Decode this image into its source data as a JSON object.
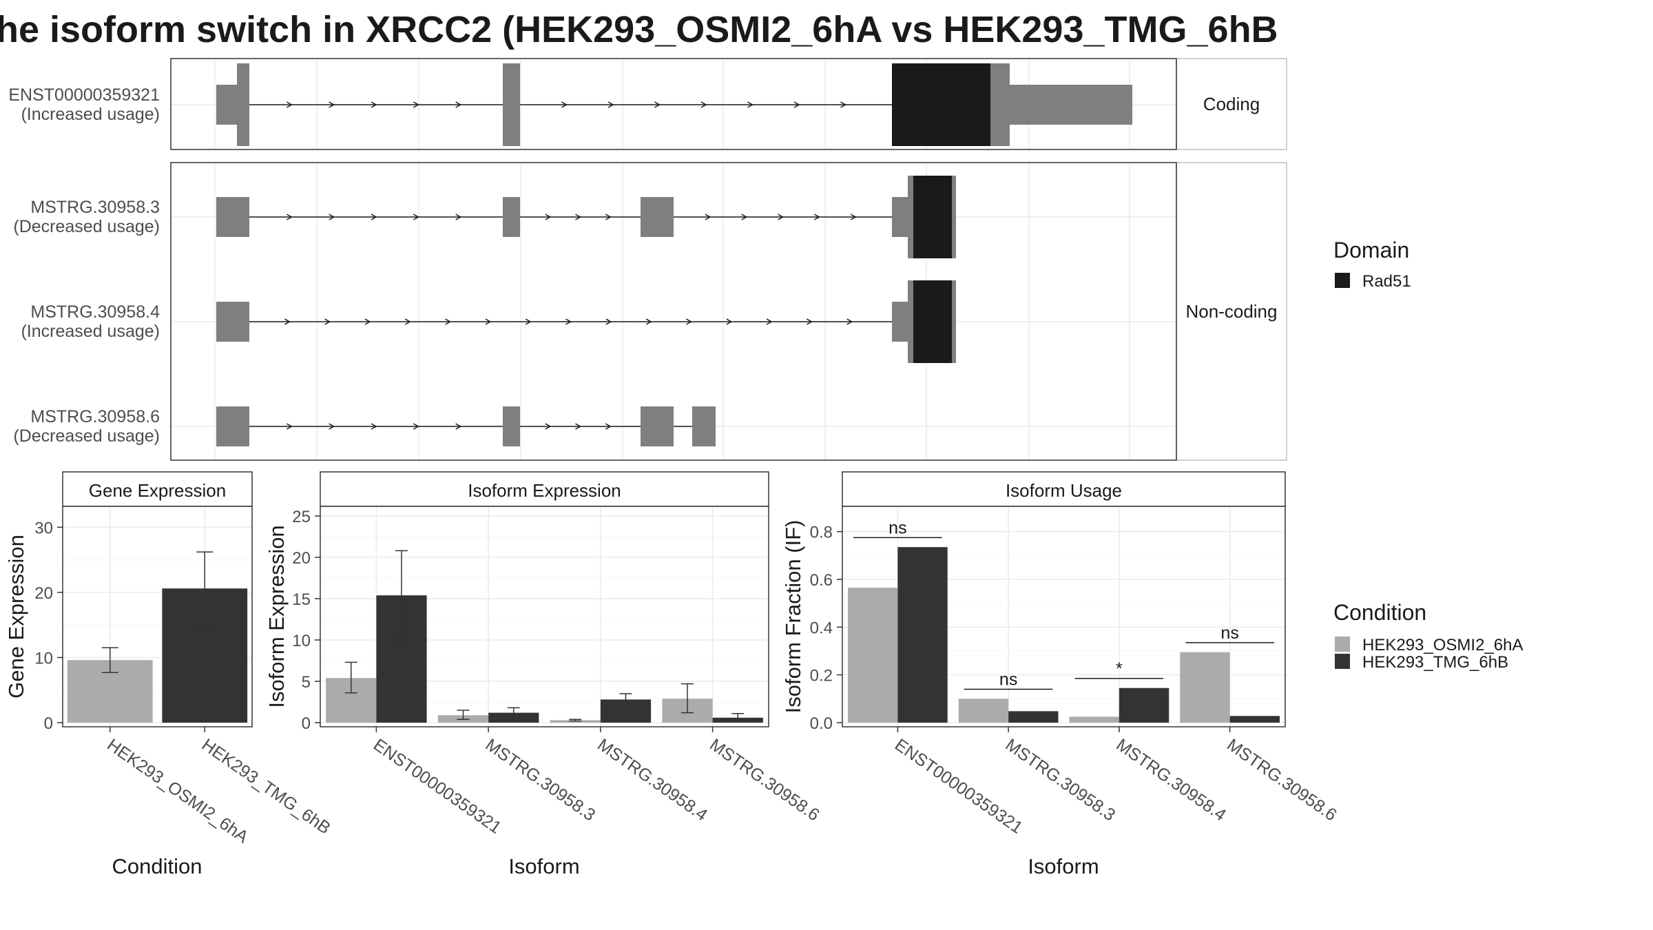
{
  "title": "he isoform switch in XRCC2 (HEK293_OSMI2_6hA vs HEK293_TMG_6hB",
  "colors": {
    "exon": "#7f7f7f",
    "domain": "#1a1a1a",
    "condition_a": "#ababab",
    "condition_b": "#333333",
    "grid": "#ebebeb",
    "panel_border": "#333333",
    "strip_border": "#bfbfbf"
  },
  "structure": {
    "facets": [
      {
        "label": "Coding",
        "rows": 1
      },
      {
        "label": "Non-coding",
        "rows": 3
      }
    ],
    "transcripts": [
      {
        "id": "ENST00000359321",
        "usage": "(Increased usage)",
        "facet": "Coding"
      },
      {
        "id": "MSTRG.30958.3",
        "usage": "(Decreased usage)",
        "facet": "Non-coding"
      },
      {
        "id": "MSTRG.30958.4",
        "usage": "(Increased usage)",
        "facet": "Non-coding"
      },
      {
        "id": "MSTRG.30958.6",
        "usage": "(Decreased usage)",
        "facet": "Non-coding"
      }
    ],
    "domain_legend_title": "Domain",
    "domain_legend_items": [
      {
        "label": "Rad51"
      }
    ]
  },
  "chart_data": [
    {
      "type": "bar",
      "title": "Gene Expression",
      "xlabel": "Condition",
      "ylabel": "Gene Expression",
      "ylim": [
        0,
        33
      ],
      "yticks": [
        0,
        10,
        20,
        30
      ],
      "categories": [
        "HEK293_OSMI2_6hA",
        "HEK293_TMG_6hB"
      ],
      "series": [
        {
          "values": [
            9.6,
            20.6
          ],
          "err_low": [
            7.7,
            15.0
          ],
          "err_high": [
            11.5,
            26.2
          ]
        }
      ]
    },
    {
      "type": "bar",
      "title": "Isoform Expression",
      "xlabel": "Isoform",
      "ylabel": "Isoform Expression",
      "ylim": [
        0,
        26
      ],
      "yticks": [
        0,
        5,
        10,
        15,
        20,
        25
      ],
      "categories": [
        "ENST00000359321",
        "MSTRG.30958.3",
        "MSTRG.30958.4",
        "MSTRG.30958.6"
      ],
      "series": [
        {
          "name": "HEK293_OSMI2_6hA",
          "values": [
            5.4,
            0.9,
            0.3,
            2.9
          ],
          "err_low": [
            3.6,
            0.4,
            0.2,
            1.2
          ],
          "err_high": [
            7.3,
            1.5,
            0.4,
            4.7
          ]
        },
        {
          "name": "HEK293_TMG_6hB",
          "values": [
            15.4,
            1.2,
            2.8,
            0.6
          ],
          "err_low": [
            10.0,
            0.6,
            2.1,
            0.2
          ],
          "err_high": [
            20.8,
            1.8,
            3.5,
            1.1
          ]
        }
      ]
    },
    {
      "type": "bar",
      "title": "Isoform Usage",
      "xlabel": "Isoform",
      "ylabel": "Isoform Fraction (IF)",
      "ylim": [
        0,
        0.9
      ],
      "yticks": [
        0.0,
        0.2,
        0.4,
        0.6,
        0.8
      ],
      "ytick_labels": [
        "0.0",
        "0.2",
        "0.4",
        "0.6",
        "0.8"
      ],
      "categories": [
        "ENST00000359321",
        "MSTRG.30958.3",
        "MSTRG.30958.4",
        "MSTRG.30958.6"
      ],
      "series": [
        {
          "name": "HEK293_OSMI2_6hA",
          "values": [
            0.565,
            0.1,
            0.025,
            0.295
          ]
        },
        {
          "name": "HEK293_TMG_6hB",
          "values": [
            0.735,
            0.048,
            0.145,
            0.028
          ]
        }
      ],
      "significance": [
        {
          "label": "ns",
          "y": 0.775
        },
        {
          "label": "ns",
          "y": 0.14
        },
        {
          "label": "*",
          "y": 0.185
        },
        {
          "label": "ns",
          "y": 0.335
        }
      ]
    }
  ],
  "condition_legend_title": "Condition",
  "condition_legend_items": [
    {
      "label": "HEK293_OSMI2_6hA"
    },
    {
      "label": "HEK293_TMG_6hB"
    }
  ]
}
